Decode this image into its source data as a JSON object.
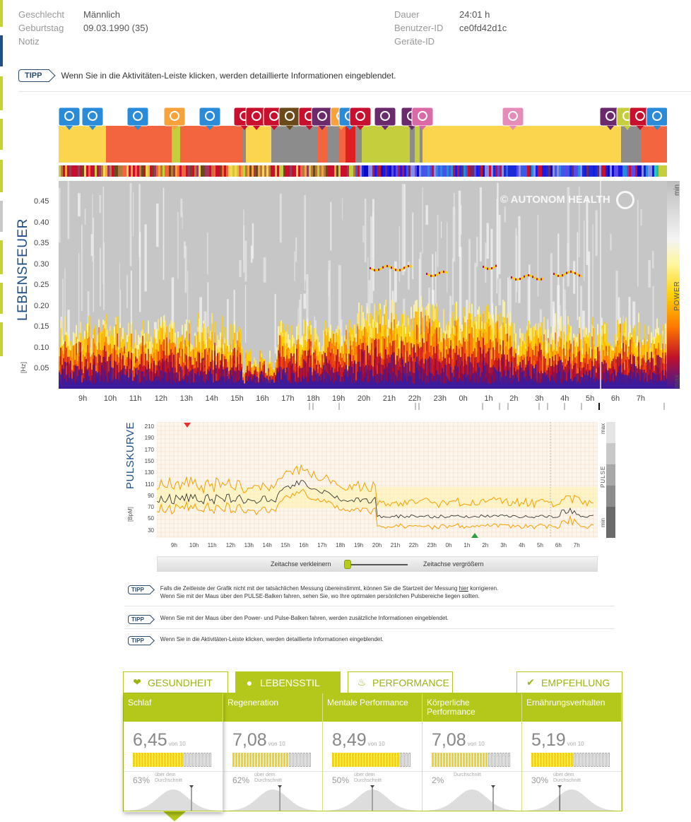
{
  "profile": {
    "geschlecht_label": "Geschlecht",
    "geschlecht": "Männlich",
    "geburtstag_label": "Geburtstag",
    "geburtstag": "09.03.1990 (35)",
    "notiz_label": "Notiz",
    "dauer_label": "Dauer",
    "dauer": "24:01 h",
    "benutzer_label": "Benutzer-ID",
    "benutzer": "ce0fd42d1c",
    "geraete_label": "Geräte-ID"
  },
  "tipp_label": "TIPP",
  "tipp_top": "Wenn Sie in die Aktivitäten-Leiste klicken, werden detaillierte Informationen eingeblendet.",
  "lebensfeuer": {
    "title": "LEBENSFEUER",
    "unit": "[Hz]",
    "watermark": "© AUTONOM HEALTH",
    "yticks": [
      "0.45",
      "0.40",
      "0.35",
      "0.30",
      "0.25",
      "0.20",
      "0.15",
      "0.10",
      "0.05"
    ],
    "xticks": [
      "9h",
      "10h",
      "11h",
      "12h",
      "13h",
      "14h",
      "15h",
      "16h",
      "17h",
      "18h",
      "19h",
      "20h",
      "21h",
      "22h",
      "23h",
      "0h",
      "1h",
      "2h",
      "3h",
      "4h",
      "5h",
      "6h",
      "7h"
    ],
    "power_min": "min",
    "power_label": "POWER",
    "power_max": "max"
  },
  "pulskurve": {
    "title": "PULSKURVE",
    "unit": "[BpM]",
    "yticks": [
      "210",
      "190",
      "170",
      "150",
      "130",
      "110",
      "90",
      "70",
      "50",
      "30"
    ],
    "xticks": [
      "9h",
      "10h",
      "11h",
      "12h",
      "13h",
      "14h",
      "15h",
      "16h",
      "17h",
      "18h",
      "19h",
      "20h",
      "21h",
      "22h",
      "23h",
      "0h",
      "1h",
      "2h",
      "3h",
      "4h",
      "5h",
      "6h",
      "7h"
    ],
    "pulse_max": "max",
    "pulse_label": "PULSE",
    "pulse_min": "min"
  },
  "zoom": {
    "zoom_out": "Zeitachse verkleinern",
    "zoom_in": "Zeitachse vergrößern"
  },
  "tipps": {
    "t1_before": "Falls die Zeitleiste der Grafik nicht mit der tatsächlichen Messung übereinstimmt, können Sie die Startzeit der Messung",
    "t1_link": "hier",
    "t1_after": "korrigieren.",
    "t1_line2": "Wenn Sie mit der Maus über den PULSE-Balken fahren, sehen Sie, wo Ihre optimalen persönlichen Pulsbereiche liegen sollten.",
    "t2": "Wenn Sie mit der Maus über den Power- und Pulse-Balken fahren, werden zusätzliche Informationen eingeblendet.",
    "t3": "Wenn Sie in die Aktivitäten-Leiste klicken, werden detaillierte Informationen eingeblendet."
  },
  "tabs": [
    {
      "label": "GESUNDHEIT",
      "icon": "heart-pulse-icon",
      "active": false
    },
    {
      "label": "LEBENSSTIL",
      "icon": "apple-icon",
      "active": true
    },
    {
      "label": "PERFORMANCE",
      "icon": "flame-icon",
      "active": false
    },
    {
      "label": "EMPFEHLUNG",
      "icon": "leaf-icon",
      "active": false
    }
  ],
  "cards": [
    {
      "title": "Schlaf",
      "score": "6,45",
      "von": "von 10",
      "filled": 0.645,
      "pct": "63%",
      "pct_label": "über dem Durchschnitt",
      "marker": 0.63
    },
    {
      "title": "Regeneration",
      "score": "7,08",
      "von": "von 10",
      "filled": 0.708,
      "pct": "62%",
      "pct_label": "über dem Durchschnitt",
      "marker": 0.62
    },
    {
      "title": "Mentale Performance",
      "score": "8,49",
      "von": "von 10",
      "filled": 0.849,
      "pct": "50%",
      "pct_label": "über dem Durchschnitt",
      "marker": 0.5
    },
    {
      "title": "Körperliche Performance",
      "score": "7,08",
      "von": "von 10",
      "filled": 0.708,
      "pct": "2%",
      "pct_label": "Durchschnitt",
      "marker": 0.02
    },
    {
      "title": "Ernährungsverhalten",
      "score": "5,19",
      "von": "von 10",
      "filled": 0.519,
      "pct": "30%",
      "pct_label": "über dem Durchschnitt",
      "marker": 0.3
    }
  ],
  "colors": {
    "accent": "#b4c81c",
    "title_blue": "#1d4f8a",
    "act_yellow": "#fbd54e",
    "act_orange": "#f2653e",
    "act_gray": "#8c8c8c",
    "act_lime": "#c5cf3e",
    "act_red": "#e02020",
    "act_purple": "#6b2a6b"
  },
  "activity_icons": [
    "mental-icon",
    "mental-icon",
    "meeting-icon",
    "meal-icon",
    "mental-icon",
    "unknown-icon",
    "walking-icon",
    "unknown-icon",
    "hiking-icon",
    "unknown-icon",
    "sleep-icon",
    "unknown-icon",
    "drink-icon",
    "unknown-icon",
    "sleep-icon",
    "sleep-icon",
    "bath-icon",
    "bed-icon",
    "sleep-icon",
    "unknown-icon",
    "unknown-icon",
    "meeting-icon"
  ]
}
